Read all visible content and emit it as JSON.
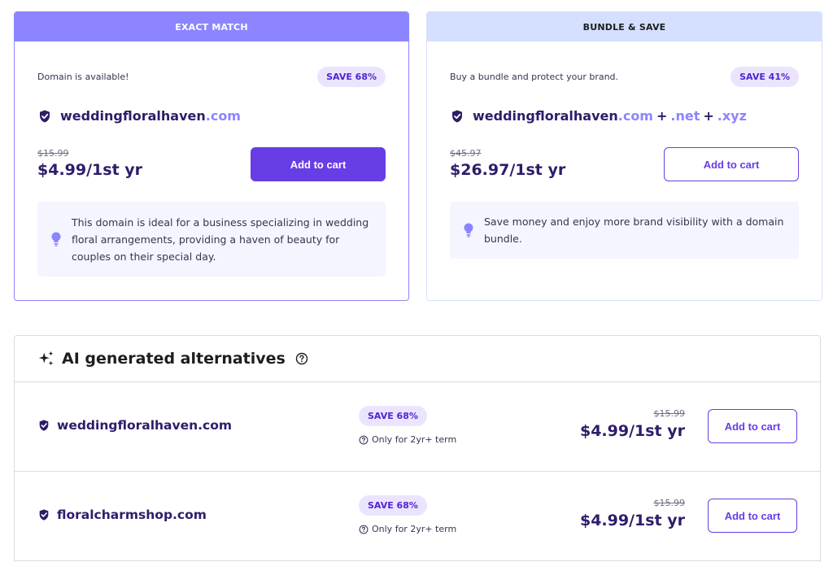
{
  "colors": {
    "accent": "#673de6",
    "exact_header": "#8c85ff",
    "bundle_header": "#d5dfff",
    "badge_bg": "#ebe4ff",
    "domain_text": "#2f1c6a"
  },
  "exact": {
    "header": "EXACT MATCH",
    "status": "Domain is available!",
    "badge": "SAVE 68%",
    "domain_name": "weddingfloralhaven",
    "domain_tld": ".com",
    "old_price": "$15.99",
    "new_price": "$4.99/1st yr",
    "button": "Add to cart",
    "tip": "This domain is ideal for a business specializing in wedding floral arrangements, providing a haven of beauty for couples on their special day."
  },
  "bundle": {
    "header": "BUNDLE & SAVE",
    "status": "Buy a bundle and protect your brand.",
    "badge": "SAVE 41%",
    "domain_name": "weddingfloralhaven",
    "tld1": ".com",
    "tld2": ".net",
    "tld3": ".xyz",
    "plus": "+",
    "old_price": "$45.97",
    "new_price": "$26.97/1st yr",
    "button": "Add to cart",
    "tip": "Save money and enjoy more brand visibility with a domain bundle."
  },
  "ai": {
    "title": "AI generated alternatives",
    "items": [
      {
        "domain": "weddingfloralhaven.com",
        "badge": "SAVE 68%",
        "term": "Only for 2yr+ term",
        "old_price": "$15.99",
        "new_price": "$4.99/1st yr",
        "button": "Add to cart"
      },
      {
        "domain": "floralcharmshop.com",
        "badge": "SAVE 68%",
        "term": "Only for 2yr+ term",
        "old_price": "$15.99",
        "new_price": "$4.99/1st yr",
        "button": "Add to cart"
      }
    ]
  },
  "icons": {
    "verified": "shield-check-icon",
    "tip": "lightbulb-icon",
    "ai": "sparkles-icon",
    "help": "question-circle-icon"
  }
}
